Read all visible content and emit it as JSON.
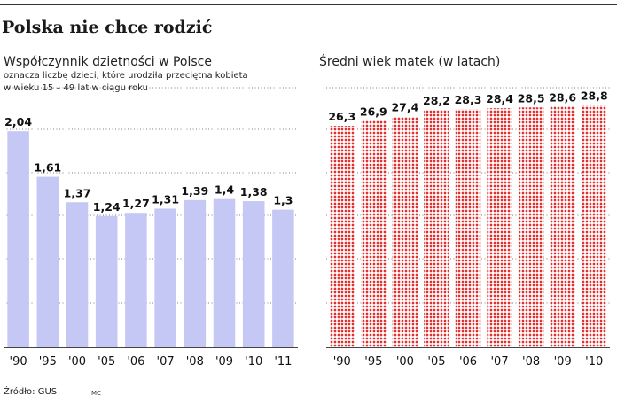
{
  "header": {
    "title": "Polska nie chce rodzić"
  },
  "chart_data": [
    {
      "type": "bar",
      "title": "Współczynnik dzietności w Polsce",
      "subtitle_lines": [
        "oznacza liczbę dzieci, które urodziła przeciętna kobieta",
        "w wieku 15 –   49 lat w ciągu roku"
      ],
      "categories": [
        "'90",
        "'95",
        "'00",
        "'05",
        "'06",
        "'07",
        "'08",
        "'09",
        "'10",
        "'11"
      ],
      "values": [
        2.04,
        1.61,
        1.37,
        1.24,
        1.27,
        1.31,
        1.39,
        1.4,
        1.38,
        1.3
      ],
      "value_labels": [
        "2,04",
        "1,61",
        "1,37",
        "1,24",
        "1,27",
        "1,31",
        "1,39",
        "1,4",
        "1,38",
        "1,3"
      ],
      "ylim": [
        0,
        2.1
      ],
      "bar_color": "#c5c8f5",
      "grid": true
    },
    {
      "type": "bar",
      "title": "Średni wiek matek (w latach)",
      "categories": [
        "'90",
        "'95",
        "'00",
        "'05",
        "'06",
        "'07",
        "'08",
        "'09",
        "'10"
      ],
      "values": [
        26.3,
        26.9,
        27.4,
        28.2,
        28.3,
        28.4,
        28.5,
        28.6,
        28.8
      ],
      "value_labels": [
        "26,3",
        "26,9",
        "27,4",
        "28,2",
        "28,3",
        "28,4",
        "28,5",
        "28,6",
        "28,8"
      ],
      "ylim": [
        0,
        30
      ],
      "bar_color": "#e03030",
      "bar_pattern": "dotted",
      "grid": true
    }
  ],
  "footer": {
    "source": "Źródło: GUS",
    "credit": "MC"
  }
}
